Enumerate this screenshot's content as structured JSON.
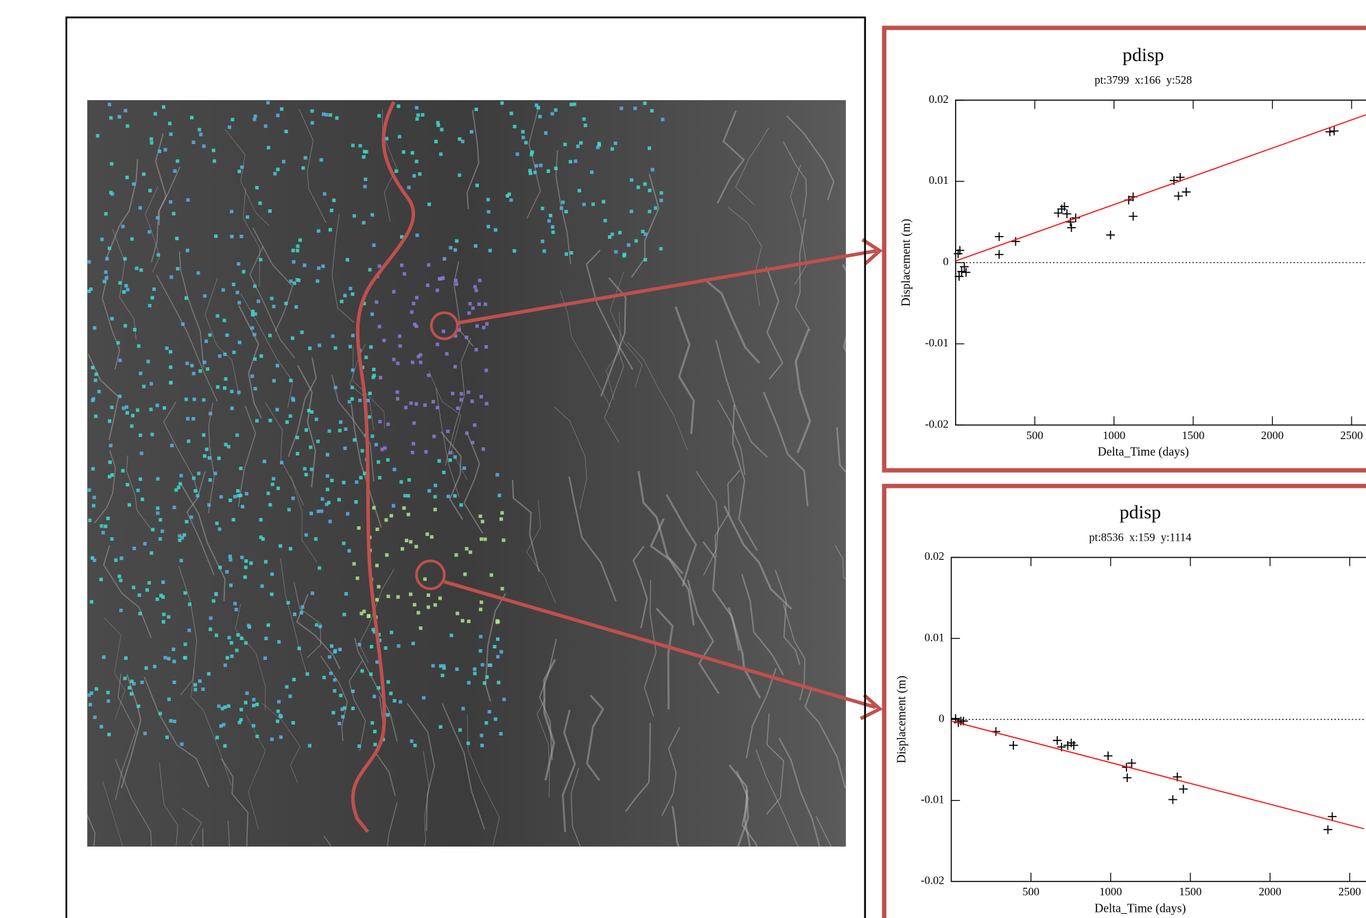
{
  "chart_data": [
    {
      "type": "scatter",
      "title": "pdisp",
      "subtitle": "pt:3799  x:166  y:528",
      "x_label": "Delta_Time (days)",
      "y_label": "Displacement (m)",
      "xlim": [
        0,
        2590
      ],
      "xticks": [
        500,
        1000,
        1500,
        2000,
        2500
      ],
      "ylim": [
        -0.02,
        0.02
      ],
      "yticks": [
        -0.02,
        -0.01,
        0,
        0.01,
        0.02
      ],
      "zero_line": true,
      "grid": false,
      "series": [
        {
          "type": "scatter",
          "color": "#000000",
          "x": [
            16,
            27,
            22,
            38,
            55,
            66,
            275,
            275,
            379,
            648,
            670,
            687,
            703,
            725,
            731,
            758,
            978,
            1093,
            1121,
            1121,
            1379,
            1418,
            1407,
            1456,
            2363,
            2390
          ],
          "values": [
            0.0011,
            0.0015,
            -0.0017,
            -0.0011,
            -0.0005,
            -0.0012,
            0.001,
            0.0032,
            0.0026,
            0.0061,
            0.0066,
            0.0069,
            0.006,
            0.005,
            0.0043,
            0.0055,
            0.0034,
            0.0077,
            0.0081,
            0.0057,
            0.0101,
            0.0105,
            0.0082,
            0.0087,
            0.0161,
            0.0162
          ]
        },
        {
          "type": "line",
          "color": "#ff0000",
          "x": [
            0,
            2590
          ],
          "values": [
            0.0002,
            0.0182
          ]
        }
      ]
    },
    {
      "type": "scatter",
      "title": "pdisp",
      "subtitle": "pt:8536  x:159  y:1114",
      "x_label": "Delta_Time (days)",
      "y_label": "Displacement (m)",
      "xlim": [
        0,
        2590
      ],
      "xticks": [
        500,
        1000,
        1500,
        2000,
        2500
      ],
      "ylim": [
        -0.02,
        0.02
      ],
      "yticks": [
        -0.02,
        -0.01,
        0,
        0.01,
        0.02
      ],
      "zero_line": true,
      "grid": false,
      "series": [
        {
          "type": "scatter",
          "color": "#000000",
          "x": [
            27,
            44,
            60,
            77,
            280,
            390,
            665,
            692,
            731,
            753,
            769,
            984,
            1099,
            1104,
            1132,
            1390,
            1418,
            1456,
            2363,
            2390
          ],
          "values": [
            0.0001,
            -0.0004,
            -0.0002,
            -0.0002,
            -0.0015,
            -0.0032,
            -0.0026,
            -0.0034,
            -0.0032,
            -0.0029,
            -0.0032,
            -0.0045,
            -0.0059,
            -0.0072,
            -0.0054,
            -0.0099,
            -0.0071,
            -0.0086,
            -0.0136,
            -0.012
          ]
        },
        {
          "type": "line",
          "color": "#ff0000",
          "x": [
            0,
            2590
          ],
          "values": [
            -0.0002,
            -0.0135
          ]
        }
      ]
    }
  ]
}
